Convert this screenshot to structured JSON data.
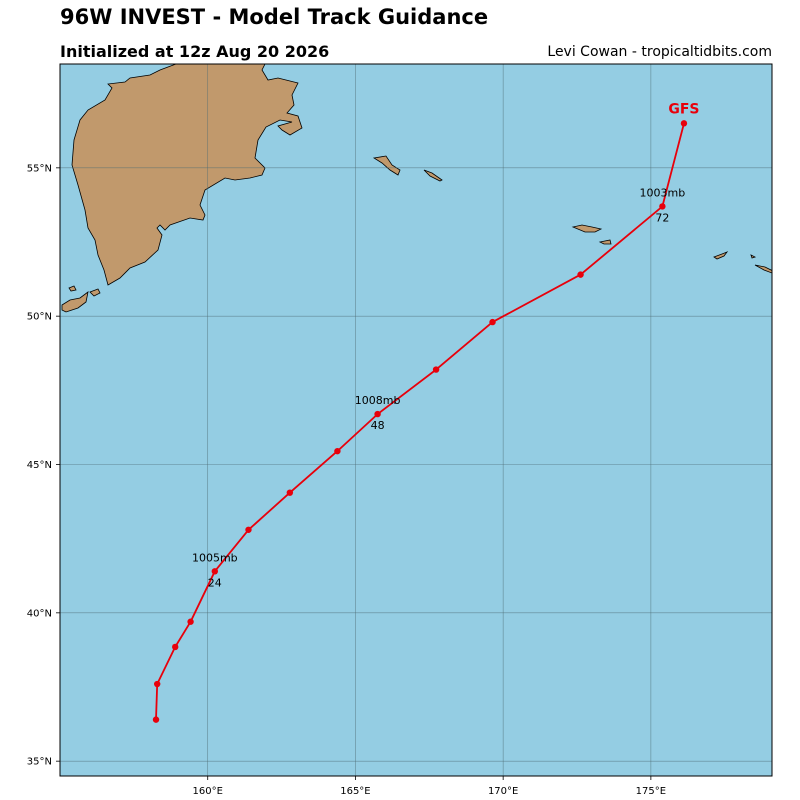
{
  "header": {
    "title": "96W INVEST - Model Track Guidance",
    "subtitle": "Initialized at 12z Aug 20 2026",
    "credit": "Levi Cowan - tropicaltidbits.com"
  },
  "colors": {
    "ocean": "#94cde3",
    "land": "#c1996c",
    "track": "#e8000b",
    "grid": "#4d6b72"
  },
  "axes": {
    "lon_range": [
      155.0,
      179.1
    ],
    "lat_range": [
      34.5,
      58.5
    ],
    "x_ticks": [
      {
        "value": 160,
        "label": "160°E"
      },
      {
        "value": 165,
        "label": "165°E"
      },
      {
        "value": 170,
        "label": "170°E"
      },
      {
        "value": 175,
        "label": "175°E"
      }
    ],
    "y_ticks": [
      {
        "value": 35,
        "label": "35°N"
      },
      {
        "value": 40,
        "label": "40°N"
      },
      {
        "value": 45,
        "label": "45°N"
      },
      {
        "value": 50,
        "label": "50°N"
      },
      {
        "value": 55,
        "label": "55°N"
      }
    ],
    "grid": true
  },
  "chart_data": {
    "type": "line",
    "series": [
      {
        "name": "GFS",
        "points": [
          {
            "lon": 158.25,
            "lat": 36.4
          },
          {
            "lon": 158.29,
            "lat": 37.6
          },
          {
            "lon": 158.9,
            "lat": 38.85
          },
          {
            "lon": 159.42,
            "lat": 39.7
          },
          {
            "lon": 160.24,
            "lat": 41.4
          },
          {
            "lon": 161.38,
            "lat": 42.8
          },
          {
            "lon": 162.78,
            "lat": 44.05
          },
          {
            "lon": 164.39,
            "lat": 45.45
          },
          {
            "lon": 165.75,
            "lat": 46.7
          },
          {
            "lon": 167.73,
            "lat": 48.2
          },
          {
            "lon": 169.64,
            "lat": 49.8
          },
          {
            "lon": 172.62,
            "lat": 51.4
          },
          {
            "lon": 175.39,
            "lat": 53.7
          },
          {
            "lon": 176.12,
            "lat": 56.5
          }
        ]
      }
    ],
    "annotations": [
      {
        "pressure": "1005mb",
        "hour": "24",
        "lon": 160.24,
        "lat": 41.4
      },
      {
        "pressure": "1008mb",
        "hour": "48",
        "lon": 165.75,
        "lat": 46.7
      },
      {
        "pressure": "1003mb",
        "hour": "72",
        "lon": 175.39,
        "lat": 53.7
      }
    ]
  }
}
